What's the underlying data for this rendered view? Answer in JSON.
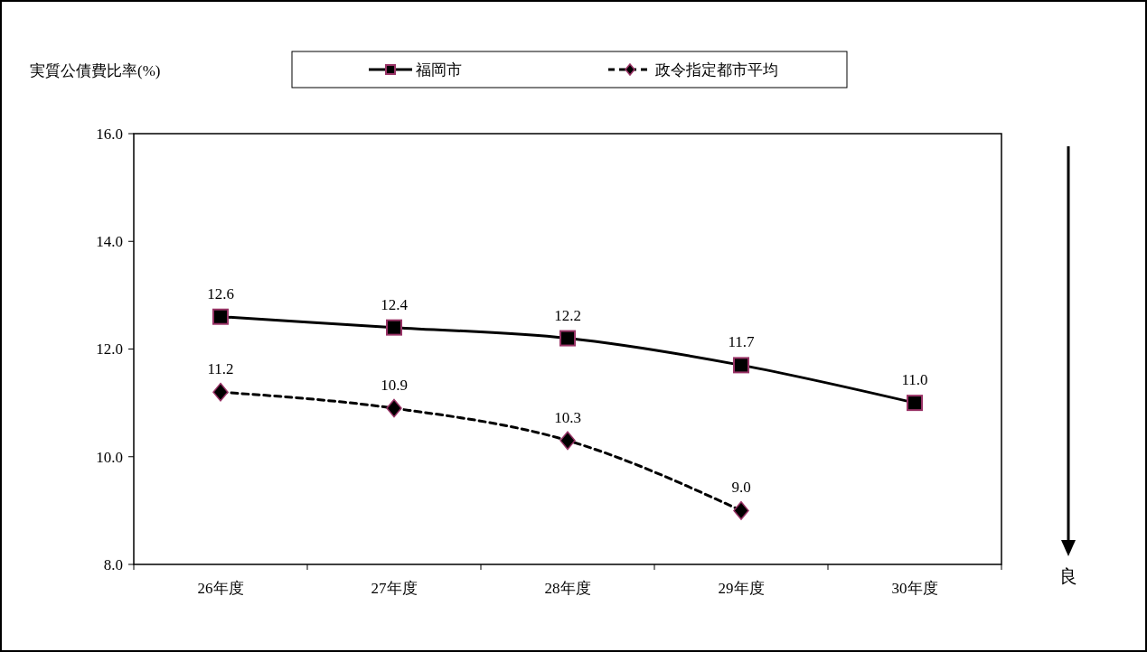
{
  "chart_data": {
    "type": "line",
    "ylabel": "実質公債費比率(%)",
    "categories": [
      "26年度",
      "27年度",
      "28年度",
      "29年度",
      "30年度"
    ],
    "series": [
      {
        "name": "福岡市",
        "color": "#000000",
        "marker": "square",
        "line_style": "solid",
        "values": [
          12.6,
          12.4,
          12.2,
          11.7,
          11.0
        ],
        "value_labels": [
          "12.6",
          "12.4",
          "12.2",
          "11.7",
          "11.0"
        ]
      },
      {
        "name": "政令指定都市平均",
        "color": "#000000",
        "marker": "diamond",
        "line_style": "dashed",
        "values": [
          11.2,
          10.9,
          10.3,
          9.0,
          null
        ],
        "value_labels": [
          "11.2",
          "10.9",
          "10.3",
          "9.0",
          null
        ]
      }
    ],
    "ylim": [
      8,
      16
    ],
    "yticks": [
      {
        "value": 8,
        "label": "8.0"
      },
      {
        "value": 10,
        "label": "10.0"
      },
      {
        "value": 12,
        "label": "12.0"
      },
      {
        "value": 14,
        "label": "14.0"
      },
      {
        "value": 16,
        "label": "16.0"
      }
    ],
    "grid": false,
    "legend": "top",
    "annotations": [
      "良"
    ]
  }
}
